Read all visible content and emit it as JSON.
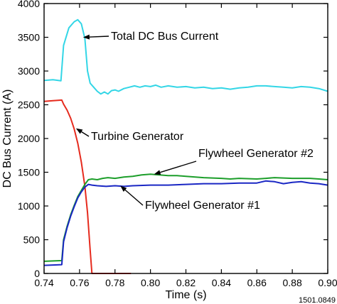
{
  "chart_data": {
    "type": "line",
    "xlabel": "Time (s)",
    "ylabel": "DC Bus Current (A)",
    "xlim": [
      0.74,
      0.9
    ],
    "ylim": [
      0,
      4000
    ],
    "x_ticks": [
      "0.74",
      "0.76",
      "0.78",
      "0.80",
      "0.82",
      "0.84",
      "0.86",
      "0.88",
      "0.90"
    ],
    "y_ticks": [
      "0",
      "500",
      "1000",
      "1500",
      "2000",
      "2500",
      "3000",
      "3500",
      "4000"
    ],
    "grid": false,
    "legend": "none (series labelled by arrow annotations)",
    "figure_id": "1501.0849",
    "series": [
      {
        "name": "Total DC Bus Current",
        "color": "#33d6e6",
        "points": [
          [
            0.74,
            2860
          ],
          [
            0.745,
            2870
          ],
          [
            0.7495,
            2855
          ],
          [
            0.751,
            3380
          ],
          [
            0.754,
            3640
          ],
          [
            0.757,
            3730
          ],
          [
            0.759,
            3760
          ],
          [
            0.761,
            3700
          ],
          [
            0.763,
            3480
          ],
          [
            0.7645,
            3000
          ],
          [
            0.766,
            2820
          ],
          [
            0.768,
            2760
          ],
          [
            0.77,
            2700
          ],
          [
            0.772,
            2660
          ],
          [
            0.774,
            2690
          ],
          [
            0.776,
            2660
          ],
          [
            0.778,
            2710
          ],
          [
            0.78,
            2720
          ],
          [
            0.782,
            2700
          ],
          [
            0.785,
            2740
          ],
          [
            0.788,
            2760
          ],
          [
            0.791,
            2780
          ],
          [
            0.794,
            2760
          ],
          [
            0.797,
            2780
          ],
          [
            0.8,
            2770
          ],
          [
            0.803,
            2790
          ],
          [
            0.806,
            2760
          ],
          [
            0.81,
            2780
          ],
          [
            0.815,
            2760
          ],
          [
            0.82,
            2770
          ],
          [
            0.825,
            2750
          ],
          [
            0.83,
            2760
          ],
          [
            0.835,
            2740
          ],
          [
            0.84,
            2750
          ],
          [
            0.845,
            2730
          ],
          [
            0.85,
            2750
          ],
          [
            0.855,
            2760
          ],
          [
            0.86,
            2780
          ],
          [
            0.865,
            2780
          ],
          [
            0.87,
            2770
          ],
          [
            0.875,
            2760
          ],
          [
            0.88,
            2750
          ],
          [
            0.885,
            2770
          ],
          [
            0.89,
            2760
          ],
          [
            0.895,
            2740
          ],
          [
            0.9,
            2700
          ]
        ]
      },
      {
        "name": "Turbine Generator",
        "color": "#e62b1e",
        "points": [
          [
            0.74,
            2550
          ],
          [
            0.745,
            2560
          ],
          [
            0.75,
            2570
          ],
          [
            0.751,
            2510
          ],
          [
            0.753,
            2420
          ],
          [
            0.755,
            2300
          ],
          [
            0.757,
            2140
          ],
          [
            0.759,
            1930
          ],
          [
            0.761,
            1650
          ],
          [
            0.763,
            1290
          ],
          [
            0.7645,
            900
          ],
          [
            0.766,
            350
          ],
          [
            0.767,
            0
          ],
          [
            0.789,
            0
          ]
        ]
      },
      {
        "name": "Flywheel Generator #2",
        "color": "#1c9e2a",
        "points": [
          [
            0.74,
            180
          ],
          [
            0.745,
            185
          ],
          [
            0.75,
            190
          ],
          [
            0.751,
            500
          ],
          [
            0.753,
            700
          ],
          [
            0.755,
            870
          ],
          [
            0.757,
            1010
          ],
          [
            0.759,
            1140
          ],
          [
            0.761,
            1230
          ],
          [
            0.763,
            1320
          ],
          [
            0.765,
            1390
          ],
          [
            0.767,
            1400
          ],
          [
            0.77,
            1390
          ],
          [
            0.773,
            1410
          ],
          [
            0.776,
            1420
          ],
          [
            0.78,
            1410
          ],
          [
            0.785,
            1430
          ],
          [
            0.79,
            1440
          ],
          [
            0.795,
            1460
          ],
          [
            0.8,
            1470
          ],
          [
            0.805,
            1460
          ],
          [
            0.81,
            1450
          ],
          [
            0.815,
            1450
          ],
          [
            0.82,
            1440
          ],
          [
            0.83,
            1420
          ],
          [
            0.84,
            1410
          ],
          [
            0.845,
            1400
          ],
          [
            0.85,
            1410
          ],
          [
            0.86,
            1400
          ],
          [
            0.865,
            1410
          ],
          [
            0.87,
            1420
          ],
          [
            0.88,
            1410
          ],
          [
            0.89,
            1410
          ],
          [
            0.895,
            1400
          ],
          [
            0.9,
            1390
          ]
        ]
      },
      {
        "name": "Flywheel Generator #1",
        "color": "#1a27c4",
        "points": [
          [
            0.74,
            120
          ],
          [
            0.745,
            125
          ],
          [
            0.75,
            130
          ],
          [
            0.751,
            470
          ],
          [
            0.753,
            680
          ],
          [
            0.755,
            850
          ],
          [
            0.757,
            990
          ],
          [
            0.759,
            1120
          ],
          [
            0.761,
            1210
          ],
          [
            0.763,
            1280
          ],
          [
            0.765,
            1320
          ],
          [
            0.767,
            1310
          ],
          [
            0.77,
            1300
          ],
          [
            0.775,
            1290
          ],
          [
            0.78,
            1300
          ],
          [
            0.785,
            1290
          ],
          [
            0.79,
            1300
          ],
          [
            0.8,
            1310
          ],
          [
            0.81,
            1310
          ],
          [
            0.82,
            1320
          ],
          [
            0.83,
            1330
          ],
          [
            0.84,
            1330
          ],
          [
            0.85,
            1340
          ],
          [
            0.86,
            1340
          ],
          [
            0.865,
            1370
          ],
          [
            0.87,
            1360
          ],
          [
            0.875,
            1330
          ],
          [
            0.88,
            1350
          ],
          [
            0.885,
            1360
          ],
          [
            0.89,
            1340
          ],
          [
            0.895,
            1330
          ],
          [
            0.9,
            1310
          ]
        ]
      }
    ],
    "annotations": [
      {
        "text": "Total DC Bus Current",
        "series": "Total DC Bus Current",
        "point": [
          0.762,
          3500
        ]
      },
      {
        "text": "Turbine Generator",
        "series": "Turbine Generator",
        "point": [
          0.758,
          2150
        ]
      },
      {
        "text": "Flywheel Generator #2",
        "series": "Flywheel Generator #2",
        "point": [
          0.802,
          1470
        ]
      },
      {
        "text": "Flywheel Generator #1",
        "series": "Flywheel Generator #1",
        "point": [
          0.783,
          1300
        ]
      }
    ]
  }
}
